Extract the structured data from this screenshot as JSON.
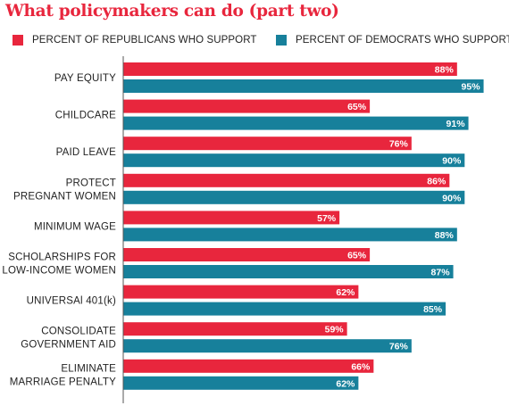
{
  "title": "What policymakers can do (part two)",
  "legend": {
    "republicans_label": "PERCENT OF REPUBLICANS WHO SUPPORT",
    "democrats_label": "PERCENT OF DEMOCRATS WHO SUPPORT"
  },
  "colors": {
    "title": "#e8263d",
    "republicans": "#e8263d",
    "democrats": "#17809b",
    "axis": "#555555"
  },
  "chart_data": {
    "type": "bar",
    "orientation": "horizontal",
    "title": "What policymakers can do (part two)",
    "categories": [
      [
        "PAY EQUITY"
      ],
      [
        "CHILDCARE"
      ],
      [
        "PAID LEAVE"
      ],
      [
        "PROTECT",
        "PREGNANT WOMEN"
      ],
      [
        "MINIMUM WAGE"
      ],
      [
        "SCHOLARSHIPS FOR",
        "LOW-INCOME WOMEN"
      ],
      [
        "UNIVERSAl 401(k)"
      ],
      [
        "CONSOLIDATE",
        "GOVERNMENT AID"
      ],
      [
        "ELIMINATE",
        "MARRIAGE PENALTY"
      ]
    ],
    "series": [
      {
        "name": "PERCENT OF REPUBLICANS WHO SUPPORT",
        "color": "#e8263d",
        "values": [
          88,
          65,
          76,
          86,
          57,
          65,
          62,
          59,
          66
        ]
      },
      {
        "name": "PERCENT OF DEMOCRATS WHO SUPPORT",
        "color": "#17809b",
        "values": [
          95,
          91,
          90,
          90,
          88,
          87,
          85,
          76,
          62
        ]
      }
    ],
    "value_suffix": "%",
    "xlim": [
      0,
      100
    ],
    "grid": false,
    "legend_position": "top"
  }
}
